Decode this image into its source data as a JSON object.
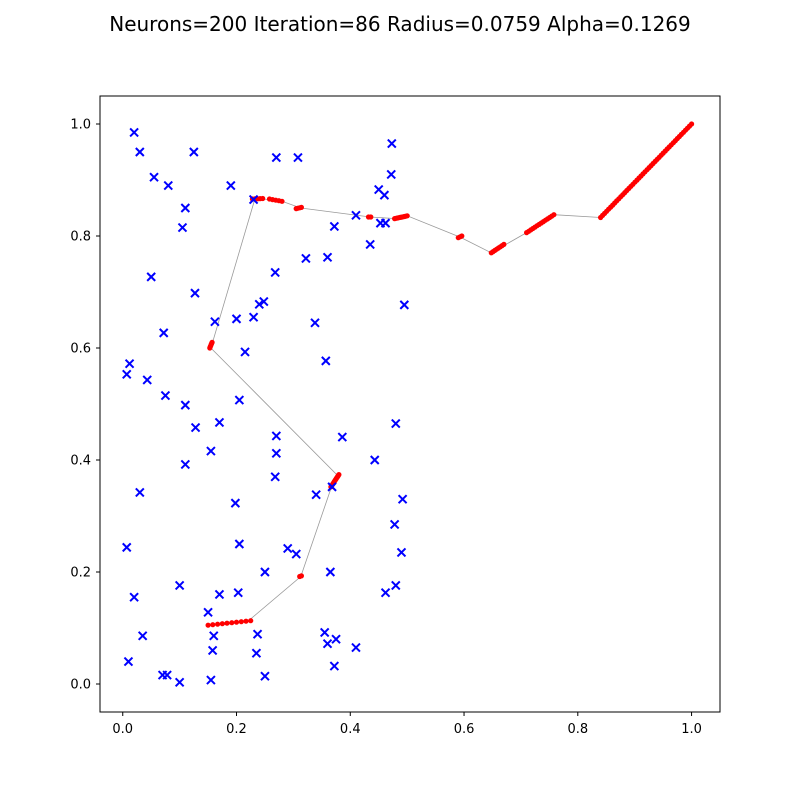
{
  "chart_data": {
    "type": "scatter",
    "title": "Neurons=200 Iteration=86 Radius=0.0759 Alpha=0.1269",
    "xlabel": "",
    "ylabel": "",
    "xlim": [
      -0.04,
      1.05
    ],
    "ylim": [
      -0.05,
      1.05
    ],
    "grid": false,
    "xticks": [
      0.0,
      0.2,
      0.4,
      0.6,
      0.8,
      1.0
    ],
    "yticks": [
      0.0,
      0.2,
      0.4,
      0.6,
      0.8,
      1.0
    ],
    "xtick_labels": [
      "0.0",
      "0.2",
      "0.4",
      "0.6",
      "0.8",
      "1.0"
    ],
    "ytick_labels": [
      "0.0",
      "0.2",
      "0.4",
      "0.6",
      "0.8",
      "1.0"
    ],
    "cities": {
      "color": "#0000ff",
      "marker": "x",
      "points": [
        [
          0.02,
          0.985
        ],
        [
          0.03,
          0.95
        ],
        [
          0.055,
          0.905
        ],
        [
          0.08,
          0.89
        ],
        [
          0.125,
          0.95
        ],
        [
          0.19,
          0.89
        ],
        [
          0.27,
          0.94
        ],
        [
          0.308,
          0.94
        ],
        [
          0.11,
          0.85
        ],
        [
          0.105,
          0.815
        ],
        [
          0.23,
          0.865
        ],
        [
          0.473,
          0.965
        ],
        [
          0.472,
          0.91
        ],
        [
          0.45,
          0.883
        ],
        [
          0.46,
          0.873
        ],
        [
          0.41,
          0.837
        ],
        [
          0.453,
          0.823
        ],
        [
          0.462,
          0.823
        ],
        [
          0.372,
          0.817
        ],
        [
          0.435,
          0.785
        ],
        [
          0.322,
          0.76
        ],
        [
          0.36,
          0.762
        ],
        [
          0.05,
          0.727
        ],
        [
          0.268,
          0.735
        ],
        [
          0.127,
          0.698
        ],
        [
          0.248,
          0.683
        ],
        [
          0.24,
          0.678
        ],
        [
          0.495,
          0.677
        ],
        [
          0.2,
          0.652
        ],
        [
          0.23,
          0.655
        ],
        [
          0.162,
          0.647
        ],
        [
          0.338,
          0.645
        ],
        [
          0.072,
          0.627
        ],
        [
          0.215,
          0.593
        ],
        [
          0.012,
          0.572
        ],
        [
          0.007,
          0.553
        ],
        [
          0.357,
          0.577
        ],
        [
          0.043,
          0.543
        ],
        [
          0.075,
          0.515
        ],
        [
          0.205,
          0.507
        ],
        [
          0.11,
          0.498
        ],
        [
          0.17,
          0.467
        ],
        [
          0.128,
          0.458
        ],
        [
          0.48,
          0.465
        ],
        [
          0.27,
          0.443
        ],
        [
          0.386,
          0.441
        ],
        [
          0.155,
          0.416
        ],
        [
          0.27,
          0.412
        ],
        [
          0.443,
          0.4
        ],
        [
          0.11,
          0.392
        ],
        [
          0.268,
          0.37
        ],
        [
          0.03,
          0.342
        ],
        [
          0.34,
          0.338
        ],
        [
          0.368,
          0.352
        ],
        [
          0.492,
          0.33
        ],
        [
          0.198,
          0.323
        ],
        [
          0.478,
          0.285
        ],
        [
          0.007,
          0.244
        ],
        [
          0.205,
          0.25
        ],
        [
          0.29,
          0.242
        ],
        [
          0.305,
          0.232
        ],
        [
          0.49,
          0.235
        ],
        [
          0.25,
          0.2
        ],
        [
          0.365,
          0.2
        ],
        [
          0.1,
          0.176
        ],
        [
          0.02,
          0.155
        ],
        [
          0.17,
          0.16
        ],
        [
          0.203,
          0.163
        ],
        [
          0.462,
          0.163
        ],
        [
          0.48,
          0.176
        ],
        [
          0.15,
          0.128
        ],
        [
          0.035,
          0.086
        ],
        [
          0.16,
          0.086
        ],
        [
          0.237,
          0.089
        ],
        [
          0.355,
          0.092
        ],
        [
          0.375,
          0.08
        ],
        [
          0.36,
          0.072
        ],
        [
          0.235,
          0.055
        ],
        [
          0.41,
          0.065
        ],
        [
          0.158,
          0.06
        ],
        [
          0.01,
          0.04
        ],
        [
          0.372,
          0.032
        ],
        [
          0.07,
          0.016
        ],
        [
          0.078,
          0.016
        ],
        [
          0.25,
          0.014
        ],
        [
          0.1,
          0.003
        ],
        [
          0.155,
          0.007
        ]
      ]
    },
    "neurons": {
      "color": "#ff0000",
      "line_color": "#9a9a9a",
      "count": 200,
      "path": [
        [
          1.0,
          1.0
        ],
        [
          0.84,
          0.833
        ],
        [
          0.758,
          0.838
        ],
        [
          0.71,
          0.806
        ],
        [
          0.648,
          0.77
        ],
        [
          0.593,
          0.798
        ],
        [
          0.5,
          0.836
        ],
        [
          0.48,
          0.831
        ],
        [
          0.435,
          0.834
        ],
        [
          0.313,
          0.85
        ],
        [
          0.28,
          0.862
        ],
        [
          0.24,
          0.867
        ],
        [
          0.232,
          0.865
        ],
        [
          0.155,
          0.6
        ],
        [
          0.378,
          0.372
        ],
        [
          0.372,
          0.355
        ],
        [
          0.367,
          0.352
        ],
        [
          0.313,
          0.192
        ],
        [
          0.22,
          0.112
        ],
        [
          0.18,
          0.106
        ],
        [
          0.152,
          0.106
        ]
      ],
      "clusters": [
        {
          "from": [
            0.84,
            0.833
          ],
          "to": [
            1.0,
            1.0
          ],
          "n": 46
        },
        {
          "from": [
            0.71,
            0.806
          ],
          "to": [
            0.758,
            0.838
          ],
          "n": 14
        },
        {
          "from": [
            0.648,
            0.77
          ],
          "to": [
            0.67,
            0.785
          ],
          "n": 8
        },
        {
          "from": [
            0.59,
            0.797
          ],
          "to": [
            0.596,
            0.8
          ],
          "n": 3
        },
        {
          "from": [
            0.478,
            0.831
          ],
          "to": [
            0.5,
            0.836
          ],
          "n": 10
        },
        {
          "from": [
            0.432,
            0.834
          ],
          "to": [
            0.436,
            0.834
          ],
          "n": 2
        },
        {
          "from": [
            0.305,
            0.849
          ],
          "to": [
            0.314,
            0.851
          ],
          "n": 4
        },
        {
          "from": [
            0.258,
            0.866
          ],
          "to": [
            0.28,
            0.862
          ],
          "n": 5
        },
        {
          "from": [
            0.228,
            0.866
          ],
          "to": [
            0.246,
            0.867
          ],
          "n": 5
        },
        {
          "from": [
            0.153,
            0.6
          ],
          "to": [
            0.157,
            0.61
          ],
          "n": 6
        },
        {
          "from": [
            0.366,
            0.352
          ],
          "to": [
            0.38,
            0.374
          ],
          "n": 14
        },
        {
          "from": [
            0.311,
            0.192
          ],
          "to": [
            0.314,
            0.193
          ],
          "n": 2
        },
        {
          "from": [
            0.15,
            0.105
          ],
          "to": [
            0.225,
            0.113
          ],
          "n": 10
        }
      ]
    }
  }
}
